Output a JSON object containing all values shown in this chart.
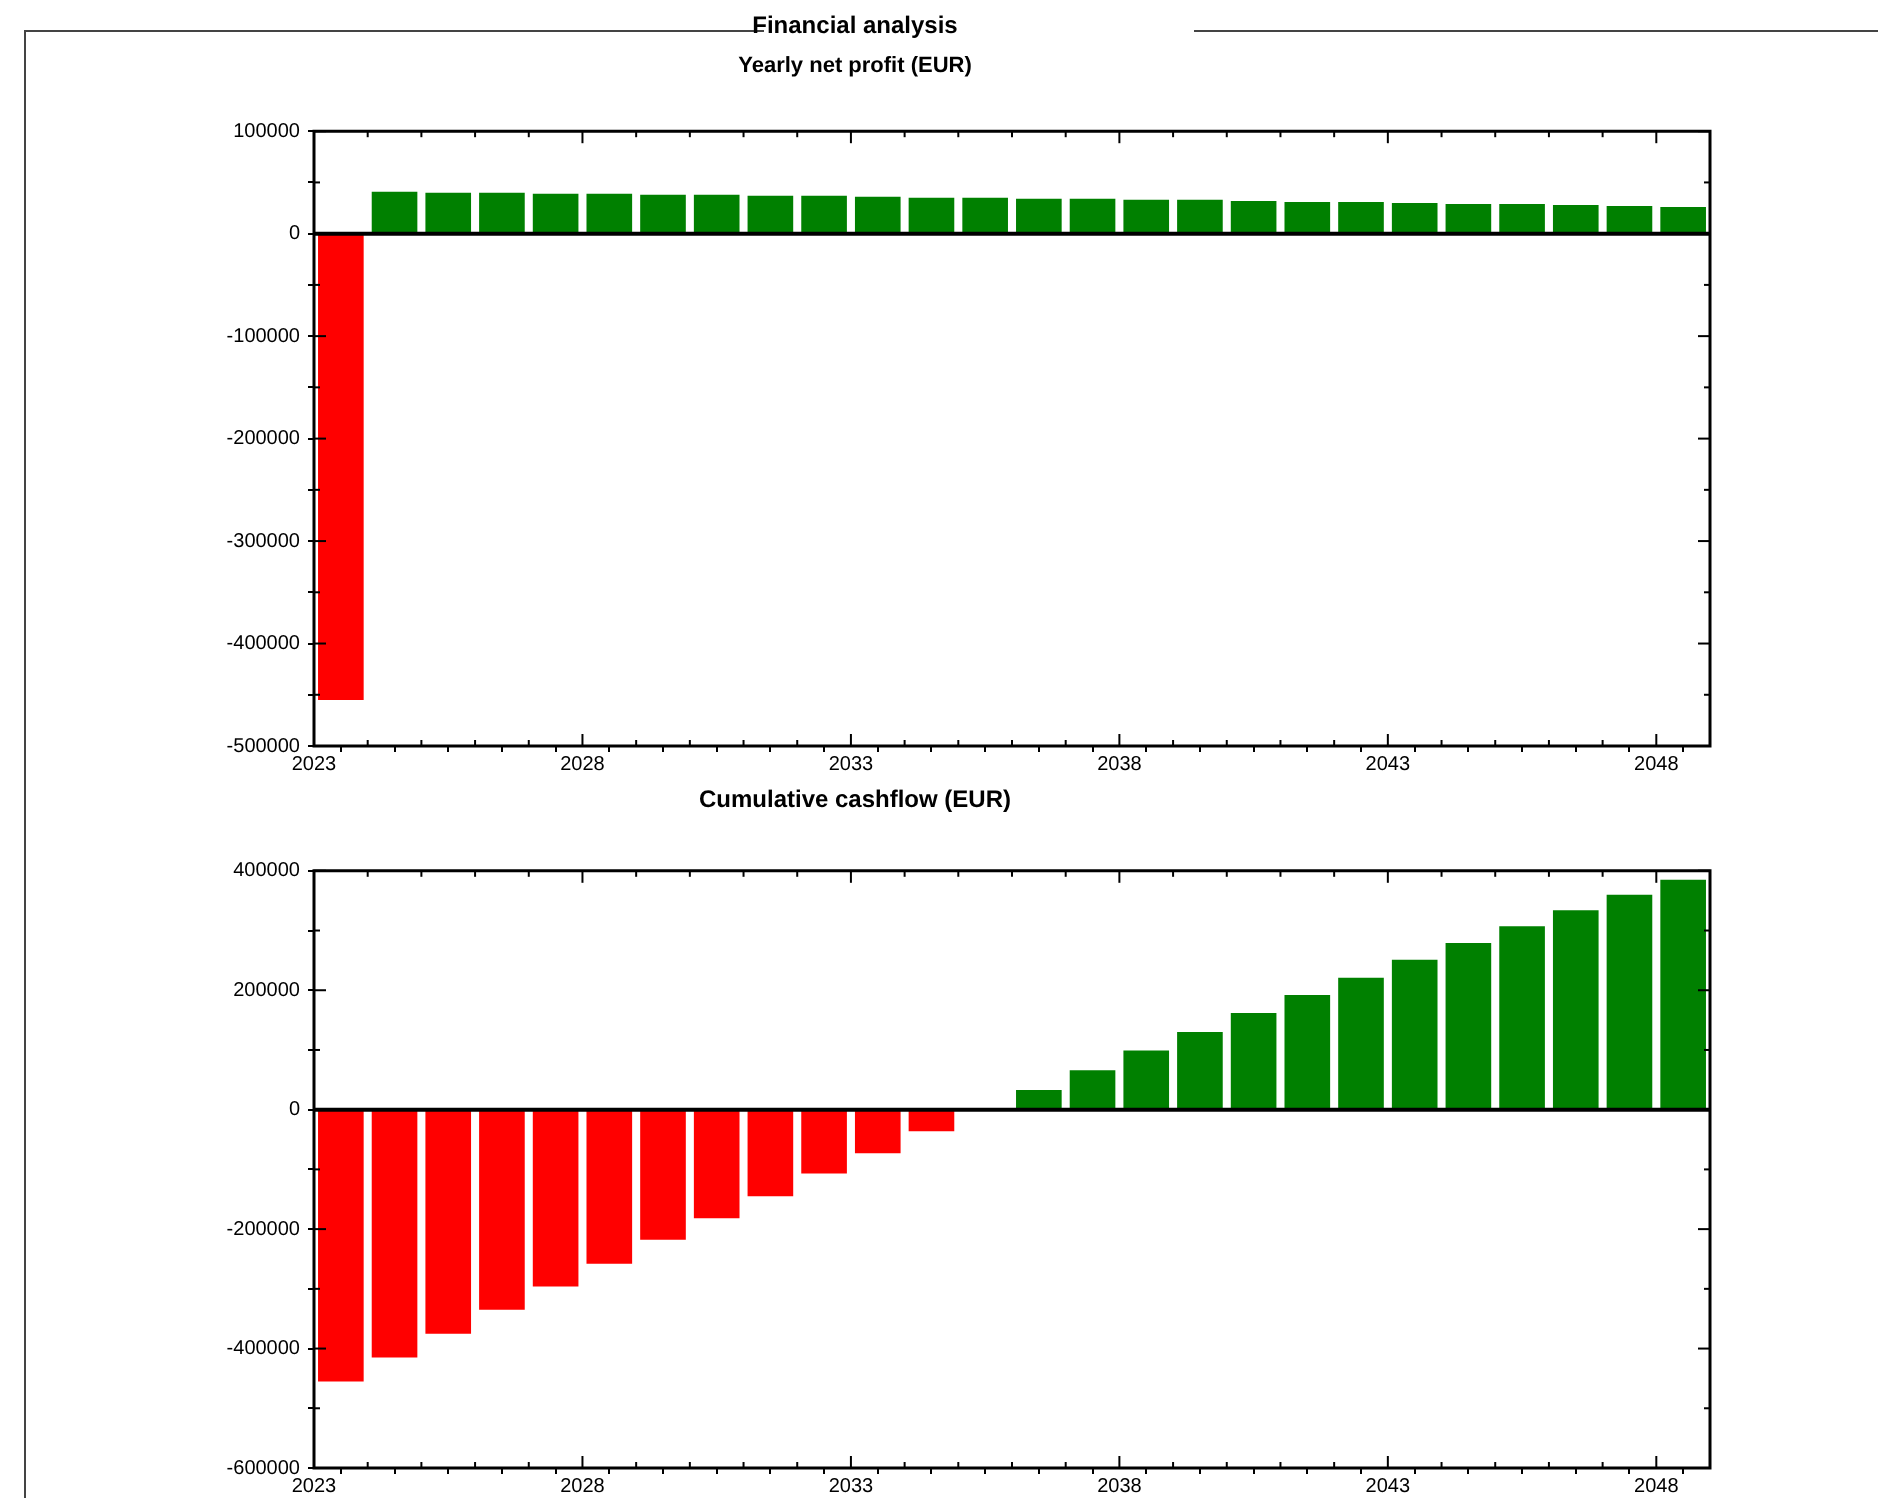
{
  "chart_data": [
    {
      "type": "bar",
      "title": "Financial analysis",
      "subtitle": "Yearly net profit (EUR)",
      "x": [
        2023.5,
        2024.5,
        2025.5,
        2026.5,
        2027.5,
        2028.5,
        2029.5,
        2030.5,
        2031.5,
        2032.5,
        2033.5,
        2034.5,
        2035.5,
        2036.5,
        2037.5,
        2038.5,
        2039.5,
        2040.5,
        2041.5,
        2042.5,
        2043.5,
        2044.5,
        2045.5,
        2046.5,
        2047.5,
        2048.5
      ],
      "values": [
        -455000,
        41000,
        40000,
        40000,
        39000,
        39000,
        38000,
        38000,
        37000,
        37000,
        36000,
        35000,
        35000,
        34000,
        34000,
        33000,
        33000,
        32000,
        31000,
        31000,
        30000,
        29000,
        29000,
        28000,
        27000,
        26000
      ],
      "colors": [
        "#ff0000",
        "#008000",
        "#008000",
        "#008000",
        "#008000",
        "#008000",
        "#008000",
        "#008000",
        "#008000",
        "#008000",
        "#008000",
        "#008000",
        "#008000",
        "#008000",
        "#008000",
        "#008000",
        "#008000",
        "#008000",
        "#008000",
        "#008000",
        "#008000",
        "#008000",
        "#008000",
        "#008000",
        "#008000",
        "#008000"
      ],
      "xlim": [
        2023,
        2049
      ],
      "xticks": [
        2023,
        {
          "value": 2024,
          "label": null
        },
        {
          "value": 2025,
          "label": null
        },
        {
          "value": 2026,
          "label": null
        },
        {
          "value": 2027,
          "label": null
        },
        2028,
        {
          "value": 2029,
          "label": null
        },
        {
          "value": 2030,
          "label": null
        },
        {
          "value": 2031,
          "label": null
        },
        {
          "value": 2032,
          "label": null
        },
        2033,
        {
          "value": 2034,
          "label": null
        },
        {
          "value": 2035,
          "label": null
        },
        {
          "value": 2036,
          "label": null
        },
        {
          "value": 2037,
          "label": null
        },
        2038,
        {
          "value": 2039,
          "label": null
        },
        {
          "value": 2040,
          "label": null
        },
        {
          "value": 2041,
          "label": null
        },
        {
          "value": 2042,
          "label": null
        },
        2043,
        {
          "value": 2044,
          "label": null
        },
        {
          "value": 2045,
          "label": null
        },
        {
          "value": 2046,
          "label": null
        },
        {
          "value": 2047,
          "label": null
        },
        2048
      ],
      "ylim": [
        -500000,
        100000
      ],
      "yticks": [
        -500000,
        {
          "value": -450000,
          "label": null
        },
        -400000,
        {
          "value": -350000,
          "label": null
        },
        -300000,
        {
          "value": -250000,
          "label": null
        },
        -200000,
        {
          "value": -150000,
          "label": null
        },
        -100000,
        {
          "value": -50000,
          "label": null
        },
        0,
        {
          "value": 50000,
          "label": null
        },
        100000
      ],
      "ref_lines": [
        {
          "axis": "y",
          "value": 0,
          "color": "#000000"
        }
      ],
      "grid": false,
      "legend": false
    },
    {
      "type": "bar",
      "title": "Cumulative cashflow (EUR)",
      "x": [
        2023.5,
        2024.5,
        2025.5,
        2026.5,
        2027.5,
        2028.5,
        2029.5,
        2030.5,
        2031.5,
        2032.5,
        2033.5,
        2034.5,
        2035.5,
        2036.5,
        2037.5,
        2038.5,
        2039.5,
        2040.5,
        2041.5,
        2042.5,
        2043.5,
        2044.5,
        2045.5,
        2046.5,
        2047.5,
        2048.5
      ],
      "values": [
        -455000,
        -415000,
        -375000,
        -335000,
        -296000,
        -258000,
        -218000,
        -182000,
        -145000,
        -107000,
        -73000,
        -36000,
        0,
        33000,
        66000,
        99000,
        130000,
        162000,
        192000,
        221000,
        251000,
        279000,
        307000,
        334000,
        360000,
        385000
      ],
      "colors": [
        "#ff0000",
        "#ff0000",
        "#ff0000",
        "#ff0000",
        "#ff0000",
        "#ff0000",
        "#ff0000",
        "#ff0000",
        "#ff0000",
        "#ff0000",
        "#ff0000",
        "#ff0000",
        "#008000",
        "#008000",
        "#008000",
        "#008000",
        "#008000",
        "#008000",
        "#008000",
        "#008000",
        "#008000",
        "#008000",
        "#008000",
        "#008000",
        "#008000",
        "#008000"
      ],
      "xlim": [
        2023,
        2049
      ],
      "xticks": [
        2023,
        {
          "value": 2024,
          "label": null
        },
        {
          "value": 2025,
          "label": null
        },
        {
          "value": 2026,
          "label": null
        },
        {
          "value": 2027,
          "label": null
        },
        2028,
        {
          "value": 2029,
          "label": null
        },
        {
          "value": 2030,
          "label": null
        },
        {
          "value": 2031,
          "label": null
        },
        {
          "value": 2032,
          "label": null
        },
        2033,
        {
          "value": 2034,
          "label": null
        },
        {
          "value": 2035,
          "label": null
        },
        {
          "value": 2036,
          "label": null
        },
        {
          "value": 2037,
          "label": null
        },
        2038,
        {
          "value": 2039,
          "label": null
        },
        {
          "value": 2040,
          "label": null
        },
        {
          "value": 2041,
          "label": null
        },
        {
          "value": 2042,
          "label": null
        },
        2043,
        {
          "value": 2044,
          "label": null
        },
        {
          "value": 2045,
          "label": null
        },
        {
          "value": 2046,
          "label": null
        },
        {
          "value": 2047,
          "label": null
        },
        2048
      ],
      "ylim": [
        -600000,
        400000
      ],
      "yticks": [
        -600000,
        {
          "value": -500000,
          "label": null
        },
        -400000,
        {
          "value": -300000,
          "label": null
        },
        -200000,
        {
          "value": -100000,
          "label": null
        },
        0,
        {
          "value": 100000,
          "label": null
        },
        200000,
        {
          "value": 300000,
          "label": null
        },
        400000
      ],
      "ref_lines": [
        {
          "axis": "y",
          "value": 0,
          "color": "#000000"
        }
      ],
      "grid": false,
      "legend": false
    }
  ]
}
